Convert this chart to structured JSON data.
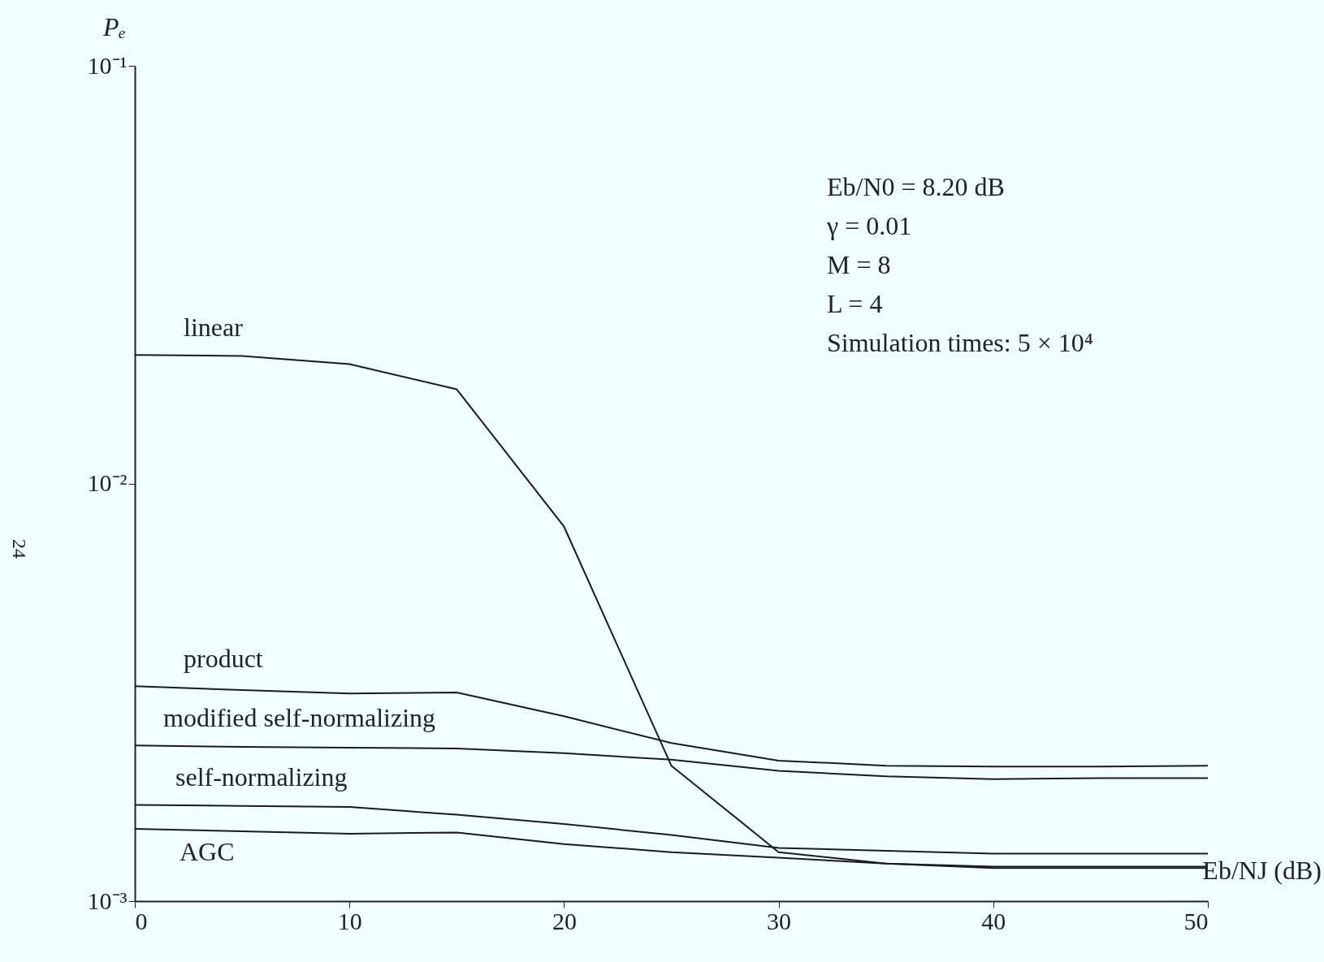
{
  "chart_data": {
    "type": "line",
    "xlabel": "Eb/NJ (dB)",
    "ylabel": "Pₑ",
    "log": "y",
    "xlim": [
      0,
      50
    ],
    "xticks": [
      0,
      10,
      20,
      30,
      40,
      50
    ],
    "ylim": [
      0.001,
      0.1
    ],
    "yticks": [
      {
        "value": 0.001,
        "label": "10⁻³"
      },
      {
        "value": 0.01,
        "label": "10⁻²"
      },
      {
        "value": 0.1,
        "label": "10⁻¹"
      }
    ],
    "grid": false,
    "marker": "none",
    "line_style": "solid",
    "x": [
      0,
      5,
      10,
      15,
      20,
      25,
      30,
      35,
      40,
      45,
      50
    ],
    "series": [
      {
        "name": "linear",
        "color": "#1a1a1a",
        "values": [
          0.0203,
          0.0202,
          0.0193,
          0.0168,
          0.00788,
          0.00211,
          0.00131,
          0.00123,
          0.00121,
          0.00121,
          0.00121
        ]
      },
      {
        "name": "product",
        "color": "#1a1a1a",
        "values": [
          0.00327,
          0.0032,
          0.00314,
          0.00316,
          0.00277,
          0.00239,
          0.00217,
          0.00211,
          0.0021,
          0.0021,
          0.00211
        ]
      },
      {
        "name": "modified self-normalizing",
        "color": "#1a1a1a",
        "values": [
          0.00236,
          0.00234,
          0.00233,
          0.00232,
          0.00226,
          0.00218,
          0.00205,
          0.00199,
          0.00196,
          0.00197,
          0.00197
        ]
      },
      {
        "name": "self-normalizing",
        "color": "#1a1a1a",
        "values": [
          0.0017,
          0.00169,
          0.00168,
          0.00161,
          0.00153,
          0.00144,
          0.00134,
          0.00132,
          0.0013,
          0.0013,
          0.0013
        ]
      },
      {
        "name": "AGC",
        "color": "#1a1a1a",
        "values": [
          0.00149,
          0.00147,
          0.00145,
          0.00146,
          0.00137,
          0.00131,
          0.00127,
          0.00123,
          0.0012,
          0.0012,
          0.0012
        ]
      }
    ],
    "annotations": [
      "Eb/N0 = 8.20 dB",
      "γ = 0.01",
      "M = 8",
      "L = 4",
      "Simulation times: 5 × 10⁴",
      "24"
    ]
  }
}
